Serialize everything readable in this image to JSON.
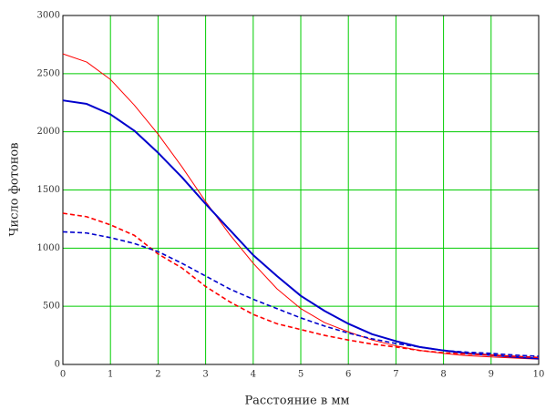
{
  "chart_data": {
    "type": "line",
    "x_label": "Расстояние в мм",
    "y_label": "Число фотонов",
    "x": [
      0,
      0.5,
      1,
      1.5,
      2,
      2.5,
      3,
      3.5,
      4,
      4.5,
      5,
      5.5,
      6,
      6.5,
      7,
      7.5,
      8,
      8.5,
      9,
      9.5,
      10
    ],
    "series": [
      {
        "color": "#ff0000",
        "width": 1,
        "dashed": false,
        "values": [
          2670,
          2600,
          2450,
          2230,
          1980,
          1700,
          1400,
          1120,
          870,
          650,
          480,
          360,
          280,
          210,
          160,
          120,
          95,
          75,
          65,
          55,
          45
        ]
      },
      {
        "color": "#0000cc",
        "width": 2,
        "dashed": false,
        "values": [
          2270,
          2240,
          2150,
          2010,
          1820,
          1610,
          1380,
          1160,
          940,
          760,
          590,
          460,
          350,
          260,
          200,
          150,
          120,
          95,
          80,
          65,
          50
        ]
      },
      {
        "color": "#ff0000",
        "width": 1.6,
        "dashed": true,
        "values": [
          1300,
          1270,
          1200,
          1110,
          950,
          830,
          670,
          540,
          430,
          350,
          300,
          250,
          210,
          175,
          150,
          120,
          100,
          90,
          80,
          70,
          60
        ]
      },
      {
        "color": "#0000cc",
        "width": 1.6,
        "dashed": true,
        "values": [
          1140,
          1130,
          1090,
          1040,
          970,
          870,
          760,
          650,
          560,
          480,
          400,
          330,
          270,
          220,
          180,
          150,
          120,
          105,
          95,
          80,
          70
        ]
      }
    ],
    "xlim": [
      0,
      10
    ],
    "xticks": [
      0,
      1,
      2,
      3,
      4,
      5,
      6,
      7,
      8,
      9,
      10
    ],
    "ylim": [
      0,
      3000
    ],
    "yticks": [
      0,
      500,
      1000,
      1500,
      2000,
      2500,
      3000
    ],
    "grid": true,
    "grid_color": "#00cc00"
  }
}
